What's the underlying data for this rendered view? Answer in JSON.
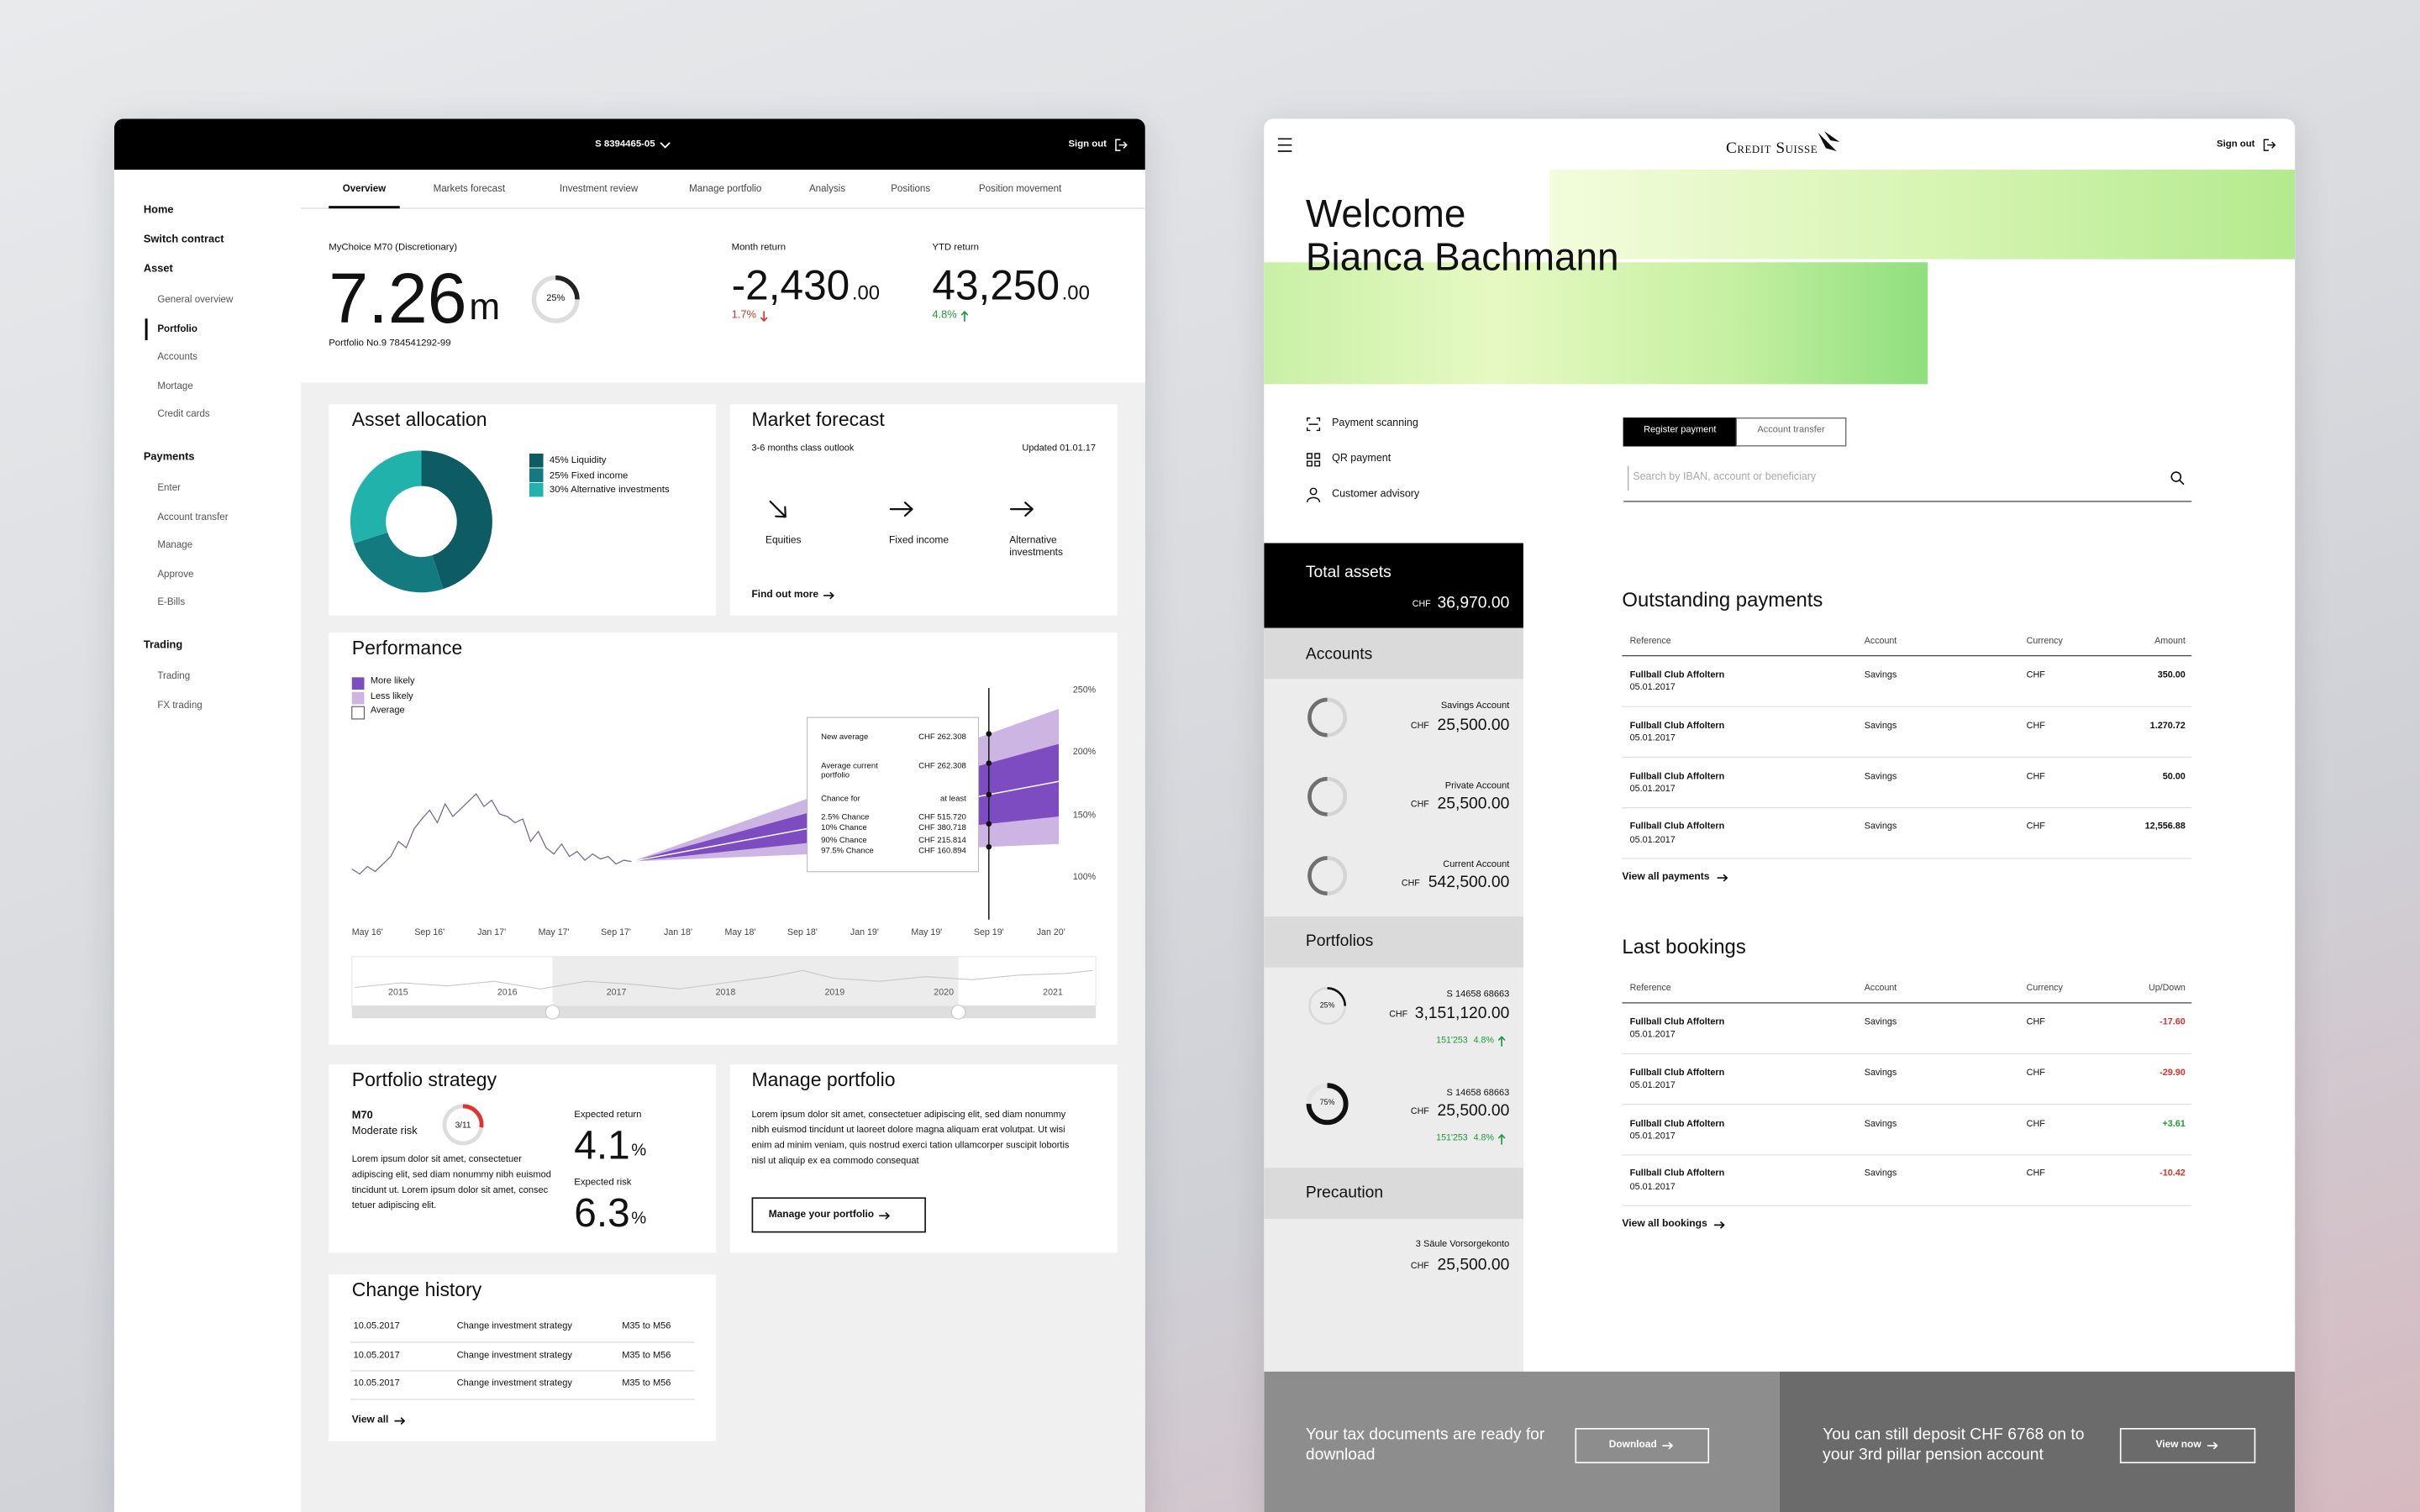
{
  "left": {
    "account": "S 8394465-05",
    "sign_out": "Sign out",
    "sidebar": [
      {
        "title": "Home"
      },
      {
        "title": "Switch contract"
      },
      {
        "title": "Asset",
        "items": [
          "General overview",
          "Portfolio",
          "Accounts",
          "Mortage",
          "Credit cards"
        ],
        "active": 1
      },
      {
        "title": "Payments",
        "items": [
          "Enter",
          "Account transfer",
          "Manage",
          "Approve",
          "E-Bills"
        ]
      },
      {
        "title": "Trading",
        "items": [
          "Trading",
          "FX trading"
        ]
      }
    ],
    "tabs": [
      "Overview",
      "Markets forecast",
      "Investment review",
      "Manage portfolio",
      "Analysis",
      "Positions",
      "Position movement"
    ],
    "active_tab": 0,
    "summary": {
      "product": "MyChoice M70 (Discretionary)",
      "value": "7.26",
      "unit": "m",
      "gauge": {
        "value": 25,
        "label": "25%"
      },
      "portfolio_no": "Portfolio No.9 784541292-99",
      "returns": [
        {
          "label": "Month return",
          "value": "-2,430",
          "decimals": ".00",
          "change": "1.7%",
          "direction": "down",
          "color": "#d9322b"
        },
        {
          "label": "YTD return",
          "value": "43,250",
          "decimals": ".00",
          "change": "4.8%",
          "direction": "up",
          "color": "#1e9a3a"
        }
      ]
    },
    "allocation": {
      "title": "Asset allocation",
      "segments": [
        {
          "value": 45,
          "label": "45% Liquidity",
          "color": "#0d5c64"
        },
        {
          "value": 25,
          "label": "25% Fixed income",
          "color": "#137a80"
        },
        {
          "value": 30,
          "label": "30% Alternative investments",
          "color": "#22b2ac"
        }
      ]
    },
    "forecast": {
      "title": "Market forecast",
      "subtitle": "3-6 months class outlook",
      "updated": "Updated 01.01.17",
      "items": [
        {
          "label": "Equities",
          "direction": "down-right"
        },
        {
          "label": "Fixed income",
          "direction": "right"
        },
        {
          "label": "Alternative investments",
          "direction": "right"
        }
      ],
      "link": "Find out more"
    },
    "performance": {
      "type": "line",
      "title": "Performance",
      "color": "#7a6a96",
      "x": [
        -1,
        -0.5,
        0,
        0.5,
        1,
        1.5,
        2,
        2.5,
        3,
        3.5,
        4,
        4.5,
        5,
        5.5,
        6,
        6.5,
        7,
        7.5,
        8,
        8.5,
        9,
        9.5,
        10,
        10.5,
        11,
        11.5,
        12,
        12.5,
        13,
        13.5,
        14,
        14.5,
        15,
        15.5,
        16,
        16.5,
        17
      ],
      "values": [
        108,
        104,
        110,
        106,
        112,
        118,
        130,
        125,
        140,
        148,
        155,
        145,
        160,
        150,
        156,
        162,
        168,
        158,
        163,
        152,
        150,
        145,
        148,
        130,
        138,
        125,
        120,
        128,
        118,
        122,
        115,
        120,
        116,
        118,
        112,
        115,
        114
      ],
      "xlim": [
        -1,
        44.5
      ],
      "ylim": [
        75,
        260
      ],
      "xticks": [
        {
          "value": 0,
          "label": "May 16'"
        },
        {
          "value": 4,
          "label": "Sep 16'"
        },
        {
          "value": 8,
          "label": "Jan 17'"
        },
        {
          "value": 12,
          "label": "May 17'"
        },
        {
          "value": 16,
          "label": "Sep 17'"
        },
        {
          "value": 20,
          "label": "Jan 18'"
        },
        {
          "value": 24,
          "label": "May 18'"
        },
        {
          "value": 28,
          "label": "Sep 18'"
        },
        {
          "value": 32,
          "label": "Jan 19'"
        },
        {
          "value": 36,
          "label": "May 19'"
        },
        {
          "value": 40,
          "label": "Sep 19'"
        },
        {
          "value": 44,
          "label": "Jan 20'"
        }
      ],
      "yticks": [
        {
          "value": 250,
          "label": "250%"
        },
        {
          "value": 200,
          "label": "200%"
        },
        {
          "value": 150,
          "label": "150%"
        },
        {
          "value": 100,
          "label": "100%"
        }
      ],
      "forecast_x": [
        17,
        44.5
      ],
      "bands": [
        {
          "name": "More likely",
          "color": "#7d4cc0",
          "lower": [
            114,
            150
          ],
          "upper": [
            114,
            208
          ]
        },
        {
          "name": "Less likely",
          "color": "#cdb5e3",
          "lower": [
            114,
            128
          ],
          "upper": [
            114,
            236
          ]
        }
      ],
      "average": {
        "name": "Average",
        "color": "#ffffff",
        "values": [
          114,
          178
        ]
      },
      "marker_x": 40,
      "tooltip": [
        [
          "New average",
          "CHF 262.308"
        ],
        [
          "Average current portfolio",
          "CHF 262.308"
        ],
        [
          "Chance for",
          "at least"
        ],
        [
          "2.5% Chance",
          "CHF 515.720"
        ],
        [
          "10% Chance",
          "CHF 380.718"
        ],
        [
          "90% Chance",
          "CHF 215.814"
        ],
        [
          "97.5% Chance",
          "CHF 160.894"
        ]
      ],
      "navigator": [
        "2015",
        "2016",
        "2017",
        "2018",
        "2019",
        "2020",
        "2021"
      ]
    },
    "strategy": {
      "title": "Portfolio strategy",
      "model": "M70",
      "risk": "Moderate risk",
      "gauge": {
        "value": 3,
        "max": 11,
        "label": "3/11",
        "color": "#e0322f"
      },
      "text": "Lorem ipsum dolor sit amet, consectetuer adipiscing elit, sed diam nonummy nibh euismod tincidunt ut. Lorem ipsum dolor sit amet, consec tetuer adipiscing elit.",
      "metrics": [
        {
          "label": "Expected return",
          "value": "4.1",
          "unit": "%"
        },
        {
          "label": "Expected risk",
          "value": "6.3",
          "unit": "%"
        }
      ]
    },
    "manage": {
      "title": "Manage portfolio",
      "text": "Lorem ipsum dolor sit amet, consectetuer adipiscing elit, sed diam nonummy nibh euismod tincidunt ut laoreet dolore magna aliquam erat volutpat. Ut wisi enim ad minim veniam, quis nostrud exerci tation ullamcorper suscipit lobortis nisl ut aliquip ex ea commodo consequat",
      "button": "Manage your portfolio"
    },
    "history": {
      "title": "Change history",
      "rows": [
        [
          "10.05.2017",
          "Change investment strategy",
          "M35 to M56"
        ],
        [
          "10.05.2017",
          "Change investment strategy",
          "M35 to M56"
        ],
        [
          "10.05.2017",
          "Change investment strategy",
          "M35 to M56"
        ]
      ],
      "link": "View all"
    }
  },
  "right": {
    "logo": "Credit Suisse",
    "sign_out": "Sign out",
    "welcome": [
      "Welcome",
      "Bianca Bachmann"
    ],
    "quick_links": [
      "Payment scanning",
      "QR payment",
      "Customer advisory"
    ],
    "tabs": [
      "Register payment",
      "Account transfer"
    ],
    "active_tab": 0,
    "search": "Search by IBAN, account or beneficiary",
    "total": {
      "label": "Total assets",
      "currency": "CHF",
      "amount": "36,970.00"
    },
    "accounts": {
      "title": "Accounts",
      "items": [
        {
          "name": "Savings Account",
          "currency": "CHF",
          "amount": "25,500.00"
        },
        {
          "name": "Private Account",
          "currency": "CHF",
          "amount": "25,500.00"
        },
        {
          "name": "Current Account",
          "currency": "CHF",
          "amount": "542,500.00"
        }
      ]
    },
    "portfolios": {
      "title": "Portfolios",
      "items": [
        {
          "name": "S 14658 68663",
          "currency": "CHF",
          "amount": "3,151,120.00",
          "gain": "151'253",
          "change": "4.8%",
          "gauge": {
            "value": 25,
            "label": "25%"
          }
        },
        {
          "name": "S 14658 68663",
          "currency": "CHF",
          "amount": "25,500.00",
          "gain": "151'253",
          "change": "4.8%",
          "gauge": {
            "value": 75,
            "label": "75%"
          }
        }
      ]
    },
    "precaution": {
      "title": "Precaution",
      "items": [
        {
          "name": "3 Säule Vorsorgekonto",
          "currency": "CHF",
          "amount": "25,500.00"
        }
      ]
    },
    "payments": {
      "title": "Outstanding payments",
      "columns": [
        "Reference",
        "Account",
        "Currency",
        "Amount"
      ],
      "rows": [
        {
          "reference": "Fullball Club Affoltern",
          "date": "05.01.2017",
          "account": "Savings",
          "currency": "CHF",
          "amount": "350.00",
          "color": "#111111"
        },
        {
          "reference": "Fullball Club Affoltern",
          "date": "05.01.2017",
          "account": "Savings",
          "currency": "CHF",
          "amount": "1.270.72",
          "color": "#111111"
        },
        {
          "reference": "Fullball Club Affoltern",
          "date": "05.01.2017",
          "account": "Savings",
          "currency": "CHF",
          "amount": "50.00",
          "color": "#111111"
        },
        {
          "reference": "Fullball Club Affoltern",
          "date": "05.01.2017",
          "account": "Savings",
          "currency": "CHF",
          "amount": "12,556.88",
          "color": "#111111"
        }
      ],
      "link": "View all payments"
    },
    "bookings": {
      "title": "Last bookings",
      "columns": [
        "Reference",
        "Account",
        "Currency",
        "Up/Down"
      ],
      "rows": [
        {
          "reference": "Fullball Club Affoltern",
          "date": "05.01.2017",
          "account": "Savings",
          "currency": "CHF",
          "amount": "-17.60",
          "color": "#d9322b"
        },
        {
          "reference": "Fullball Club Affoltern",
          "date": "05.01.2017",
          "account": "Savings",
          "currency": "CHF",
          "amount": "-29.90",
          "color": "#d9322b"
        },
        {
          "reference": "Fullball Club Affoltern",
          "date": "05.01.2017",
          "account": "Savings",
          "currency": "CHF",
          "amount": "+3.61",
          "color": "#1e9a3a"
        },
        {
          "reference": "Fullball Club Affoltern",
          "date": "05.01.2017",
          "account": "Savings",
          "currency": "CHF",
          "amount": "-10.42",
          "color": "#d9322b"
        }
      ],
      "link": "View all bookings"
    },
    "banners": [
      {
        "text": "Your tax documents are ready for download",
        "button": "Download",
        "color": "#8d8d8d"
      },
      {
        "text": "You can still deposit CHF 6768 on to your 3rd pillar pension account",
        "button": "View now",
        "color": "#6b6b6b"
      }
    ]
  }
}
